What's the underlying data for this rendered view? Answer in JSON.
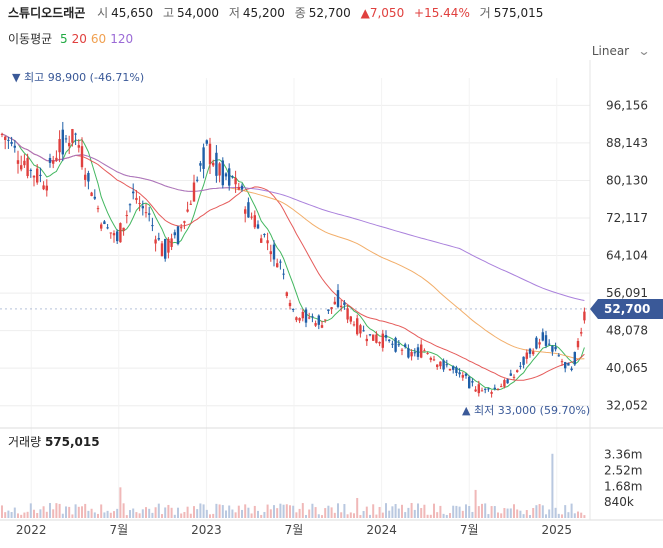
{
  "header": {
    "name": "스튜디오드래곤",
    "open_label": "시",
    "open": "45,650",
    "high_label": "고",
    "high": "54,000",
    "low_label": "저",
    "low": "45,200",
    "close_label": "종",
    "close": "52,700",
    "change": "7,050",
    "change_pct": "+15.44%",
    "volume_label": "거",
    "volume": "575,015"
  },
  "ma": {
    "title": "이동평균",
    "periods": [
      {
        "label": "5",
        "color": "#22aa44"
      },
      {
        "label": "20",
        "color": "#e0403e"
      },
      {
        "label": "60",
        "color": "#f0a050"
      },
      {
        "label": "120",
        "color": "#9b6bd6"
      }
    ]
  },
  "scale_mode": "Linear",
  "colors": {
    "up": "#e0403e",
    "down": "#1f5fa8",
    "price_tag": "#3a5998",
    "vol": "#f0b8b8",
    "vol_down": "#b9c8e0"
  },
  "chart_data": {
    "type": "candlestick",
    "ylim": [
      29000,
      102000
    ],
    "y_ticks": [
      "96,156",
      "88,143",
      "80,130",
      "72,117",
      "64,104",
      "56,091",
      "48,078",
      "40,065",
      "32,052"
    ],
    "y_tick_values": [
      96156,
      88143,
      80130,
      72117,
      64104,
      56091,
      48078,
      40065,
      32052
    ],
    "x_ticks": [
      "2022",
      "7월",
      "2023",
      "7월",
      "2024",
      "7월",
      "2025"
    ],
    "x_tick_dates": [
      "2022-01",
      "2022-07",
      "2023-01",
      "2023-07",
      "2024-01",
      "2024-07",
      "2025-01"
    ],
    "x_range": [
      "2021-11",
      "2025-03"
    ],
    "current_price": "52,700",
    "max_annotation": "▼ 최고 98,900 (-46.71%)",
    "min_annotation": "▲ 최저 33,000 (59.70%)",
    "max_point": {
      "date": "2021-11",
      "value": 98900
    },
    "min_point": {
      "date": "2024-08",
      "value": 33000
    },
    "close_series": [
      {
        "date": "2021-11",
        "close": 90000
      },
      {
        "date": "2021-12",
        "close": 86000
      },
      {
        "date": "2022-01",
        "close": 82000
      },
      {
        "date": "2022-02",
        "close": 80000
      },
      {
        "date": "2022-03",
        "close": 88000
      },
      {
        "date": "2022-04",
        "close": 90000
      },
      {
        "date": "2022-05",
        "close": 80000
      },
      {
        "date": "2022-06",
        "close": 70000
      },
      {
        "date": "2022-07",
        "close": 68000
      },
      {
        "date": "2022-08",
        "close": 77000
      },
      {
        "date": "2022-09",
        "close": 73000
      },
      {
        "date": "2022-10",
        "close": 65000
      },
      {
        "date": "2022-11",
        "close": 68000
      },
      {
        "date": "2022-12",
        "close": 76000
      },
      {
        "date": "2023-01",
        "close": 87000
      },
      {
        "date": "2023-02",
        "close": 82000
      },
      {
        "date": "2023-03",
        "close": 80000
      },
      {
        "date": "2023-04",
        "close": 73000
      },
      {
        "date": "2023-05",
        "close": 68000
      },
      {
        "date": "2023-06",
        "close": 63000
      },
      {
        "date": "2023-07",
        "close": 52000
      },
      {
        "date": "2023-08",
        "close": 51000
      },
      {
        "date": "2023-09",
        "close": 50000
      },
      {
        "date": "2023-10",
        "close": 55000
      },
      {
        "date": "2023-11",
        "close": 50000
      },
      {
        "date": "2023-12",
        "close": 47000
      },
      {
        "date": "2024-01",
        "close": 46000
      },
      {
        "date": "2024-02",
        "close": 45000
      },
      {
        "date": "2024-03",
        "close": 43000
      },
      {
        "date": "2024-04",
        "close": 44000
      },
      {
        "date": "2024-05",
        "close": 41000
      },
      {
        "date": "2024-06",
        "close": 40000
      },
      {
        "date": "2024-07",
        "close": 37000
      },
      {
        "date": "2024-08",
        "close": 35000
      },
      {
        "date": "2024-09",
        "close": 36000
      },
      {
        "date": "2024-10",
        "close": 38000
      },
      {
        "date": "2024-11",
        "close": 43000
      },
      {
        "date": "2024-12",
        "close": 47000
      },
      {
        "date": "2025-01",
        "close": 43000
      },
      {
        "date": "2025-02",
        "close": 39000
      },
      {
        "date": "2025-03",
        "close": 52700
      }
    ],
    "volume_ticks": [
      "3.36m",
      "2.52m",
      "1.68m",
      "840k"
    ],
    "volume_tick_values": [
      3360000,
      2520000,
      1680000,
      840000
    ],
    "volume_title": "거래량",
    "volume_last": "575,015"
  }
}
